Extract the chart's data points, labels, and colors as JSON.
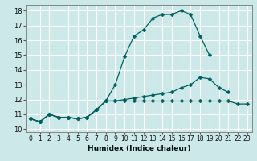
{
  "xlabel": "Humidex (Indice chaleur)",
  "bg_color": "#cce8e8",
  "grid_color": "#ffffff",
  "line_color": "#006060",
  "xlim": [
    -0.5,
    23.5
  ],
  "ylim": [
    9.8,
    18.4
  ],
  "xticks": [
    0,
    1,
    2,
    3,
    4,
    5,
    6,
    7,
    8,
    9,
    10,
    11,
    12,
    13,
    14,
    15,
    16,
    17,
    18,
    19,
    20,
    21,
    22,
    23
  ],
  "yticks": [
    10,
    11,
    12,
    13,
    14,
    15,
    16,
    17,
    18
  ],
  "line1_x": [
    0,
    1,
    2,
    3,
    4,
    5,
    6,
    7,
    8,
    9,
    10,
    11,
    12,
    13,
    14,
    15,
    16,
    17,
    18,
    19
  ],
  "line1_y": [
    10.7,
    10.5,
    11.0,
    10.8,
    10.8,
    10.7,
    10.8,
    11.3,
    11.9,
    13.0,
    14.9,
    16.3,
    16.7,
    17.5,
    17.75,
    17.75,
    18.0,
    17.75,
    16.3,
    15.0
  ],
  "line2_x": [
    0,
    1,
    2,
    3,
    4,
    5,
    6,
    7,
    8,
    9,
    10,
    11,
    12,
    13,
    14,
    15,
    16,
    17,
    18,
    19,
    20,
    21
  ],
  "line2_y": [
    10.7,
    10.5,
    11.0,
    10.8,
    10.8,
    10.7,
    10.8,
    11.3,
    11.9,
    11.9,
    12.0,
    12.1,
    12.2,
    12.3,
    12.4,
    12.5,
    12.8,
    13.0,
    13.5,
    13.4,
    12.8,
    12.5
  ],
  "line3_x": [
    0,
    1,
    2,
    3,
    4,
    5,
    6,
    7,
    8,
    9,
    10,
    11,
    12,
    13,
    14,
    15,
    16,
    17,
    18,
    19,
    20,
    21,
    22,
    23
  ],
  "line3_y": [
    10.7,
    10.5,
    11.0,
    10.8,
    10.8,
    10.7,
    10.8,
    11.3,
    11.9,
    11.9,
    11.9,
    11.9,
    11.9,
    11.9,
    11.9,
    11.9,
    11.9,
    11.9,
    11.9,
    11.9,
    11.9,
    11.9,
    11.7,
    11.7
  ]
}
